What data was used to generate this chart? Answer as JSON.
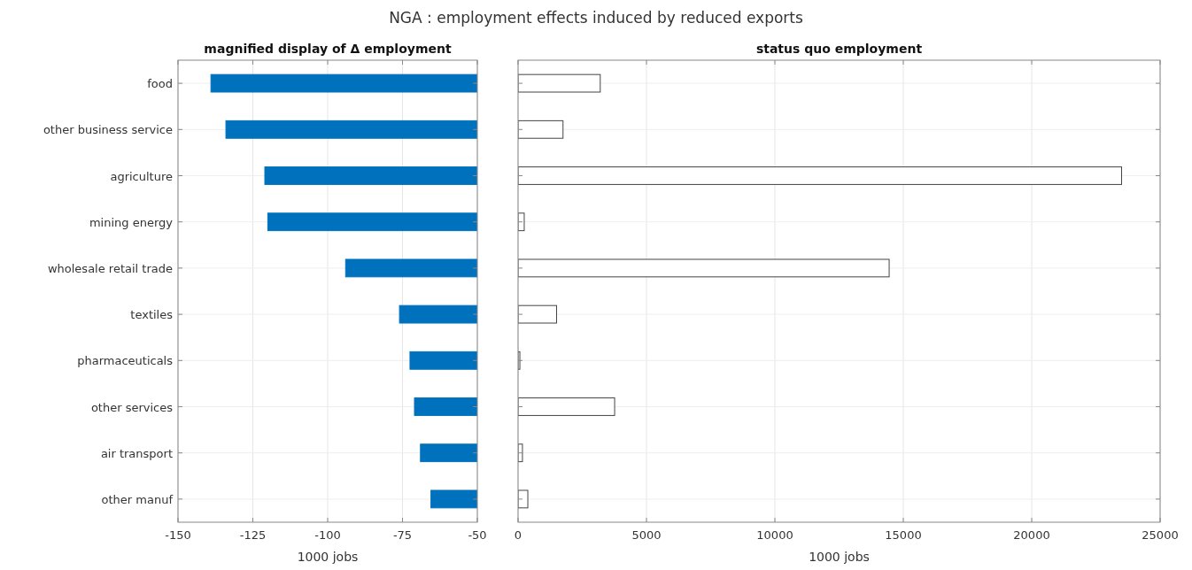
{
  "chart_data": [
    {
      "type": "bar",
      "orientation": "horizontal",
      "title": "NGA : employment effects induced by reduced exports",
      "subtitle": "magnified display of Δ employment",
      "xlabel": "1000 jobs",
      "categories": [
        "food",
        "other business service",
        "agriculture",
        "mining energy",
        "wholesale retail trade",
        "textiles",
        "pharmaceuticals",
        "other services",
        "air transport",
        "other manuf"
      ],
      "values": [
        -139,
        -134,
        -121,
        -120,
        -94,
        -76,
        -72.5,
        -71,
        -69,
        -65.5
      ],
      "color": "#0072bd",
      "xlim": [
        -150,
        -50
      ],
      "xticks": [
        -150,
        -125,
        -100,
        -75,
        -50
      ],
      "grid": true
    },
    {
      "type": "bar",
      "orientation": "horizontal",
      "title": "status quo employment",
      "xlabel": "1000 jobs",
      "categories": [
        null,
        null,
        null,
        null,
        null,
        null,
        null,
        null,
        null,
        null
      ],
      "values": [
        3200,
        1750,
        23500,
        240,
        14450,
        1500,
        70,
        3760,
        170,
        380
      ],
      "color": "#ffffff",
      "xlim": [
        0,
        25000
      ],
      "xticks": [
        0,
        5000,
        10000,
        15000,
        20000,
        25000
      ],
      "grid": true,
      "tick_labels": "x"
    }
  ]
}
